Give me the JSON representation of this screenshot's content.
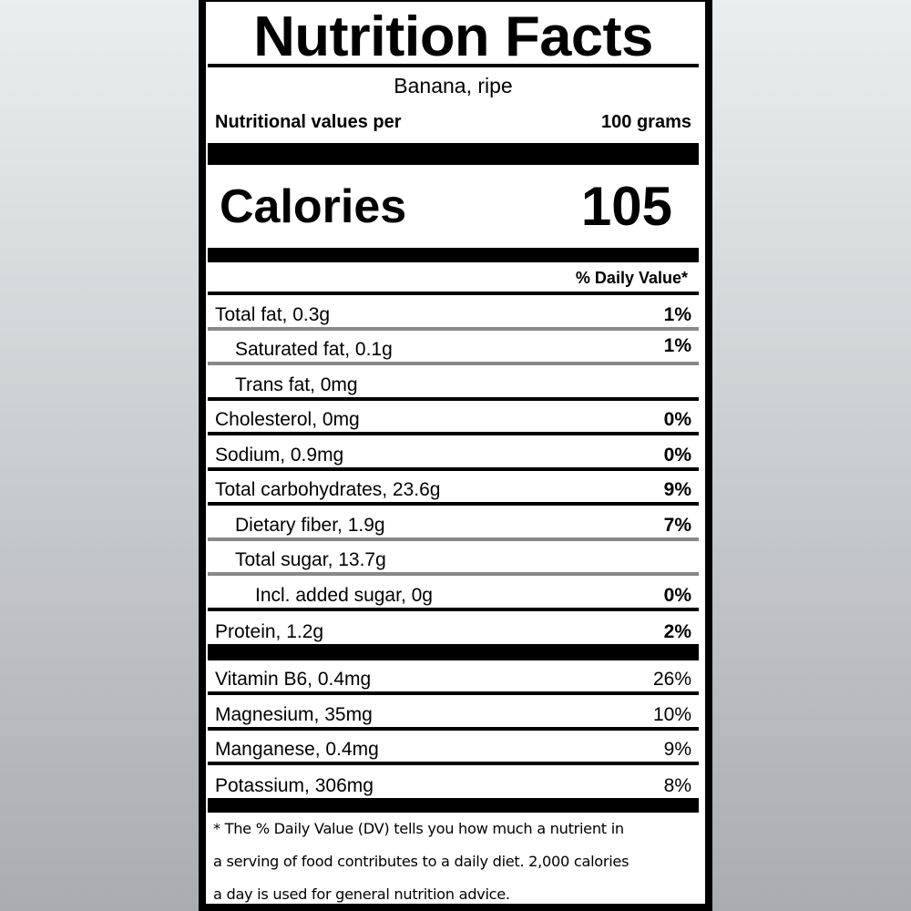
{
  "title": "Nutrition Facts",
  "food": "Banana, ripe",
  "serving": {
    "label": "Nutritional values per",
    "amount": "100 grams"
  },
  "calories": {
    "label": "Calories",
    "value": "105"
  },
  "daily_value_header": "% Daily Value*",
  "nutrients": [
    {
      "label": "Total fat, 0.3g",
      "dv": "1%"
    },
    {
      "label": "Saturated fat, 0.1g",
      "dv": "1%"
    },
    {
      "label": "Trans fat, 0mg",
      "dv": ""
    },
    {
      "label": "Cholesterol, 0mg",
      "dv": "0%"
    },
    {
      "label": "Sodium, 0.9mg",
      "dv": "0%"
    },
    {
      "label": "Total carbohydrates, 23.6g",
      "dv": "9%"
    },
    {
      "label": "Dietary fiber, 1.9g",
      "dv": "7%"
    },
    {
      "label": "Total sugar, 13.7g",
      "dv": ""
    },
    {
      "label": "Incl. added sugar, 0g",
      "dv": "0%"
    },
    {
      "label": "Protein, 1.2g",
      "dv": "2%"
    }
  ],
  "micronutrients": [
    {
      "label": "Vitamin B6, 0.4mg",
      "dv": "26%"
    },
    {
      "label": "Magnesium, 35mg",
      "dv": "10%"
    },
    {
      "label": "Manganese, 0.4mg",
      "dv": "9%"
    },
    {
      "label": "Potassium, 306mg",
      "dv": "8%"
    }
  ],
  "footnote": [
    "* The % Daily Value (DV) tells you how much a nutrient in",
    "a serving of food contributes to a daily diet. 2,000 calories",
    "a day is used for general nutrition advice."
  ]
}
